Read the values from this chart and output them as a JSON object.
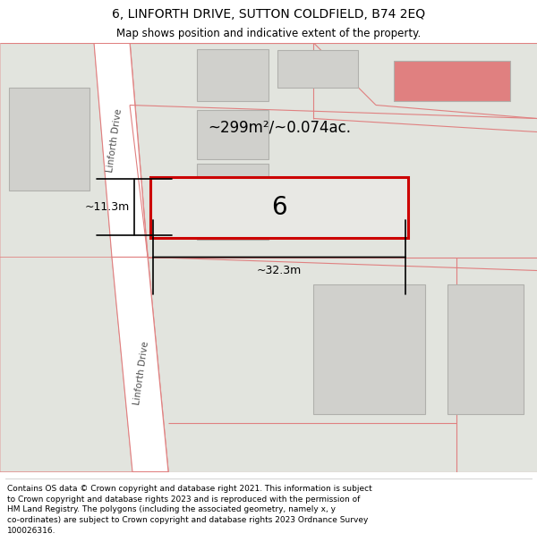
{
  "title": "6, LINFORTH DRIVE, SUTTON COLDFIELD, B74 2EQ",
  "subtitle": "Map shows position and indicative extent of the property.",
  "footer": "Contains OS data © Crown copyright and database right 2021. This information is subject\nto Crown copyright and database rights 2023 and is reproduced with the permission of\nHM Land Registry. The polygons (including the associated geometry, namely x, y\nco-ordinates) are subject to Crown copyright and database rights 2023 Ordnance Survey\n100026316.",
  "map_bg": "#f2f2ee",
  "road_fill": "#ffffff",
  "road_edge": "#e08080",
  "parcel_fill": "#e2e4de",
  "parcel_edge": "#e08080",
  "building_fill": "#d0d0cc",
  "building_edge": "#b0b0ac",
  "property_fill": "#e8e8e4",
  "property_edge": "#cc0000",
  "property_label": "6",
  "area_label": "~299m²/~0.074ac.",
  "width_label": "~32.3m",
  "height_label": "~11.3m",
  "road_label": "Linforth Drive",
  "title_fontsize": 10,
  "subtitle_fontsize": 8.5,
  "footer_fontsize": 6.5,
  "label_fontsize": 9,
  "area_fontsize": 12,
  "property_num_fontsize": 20
}
